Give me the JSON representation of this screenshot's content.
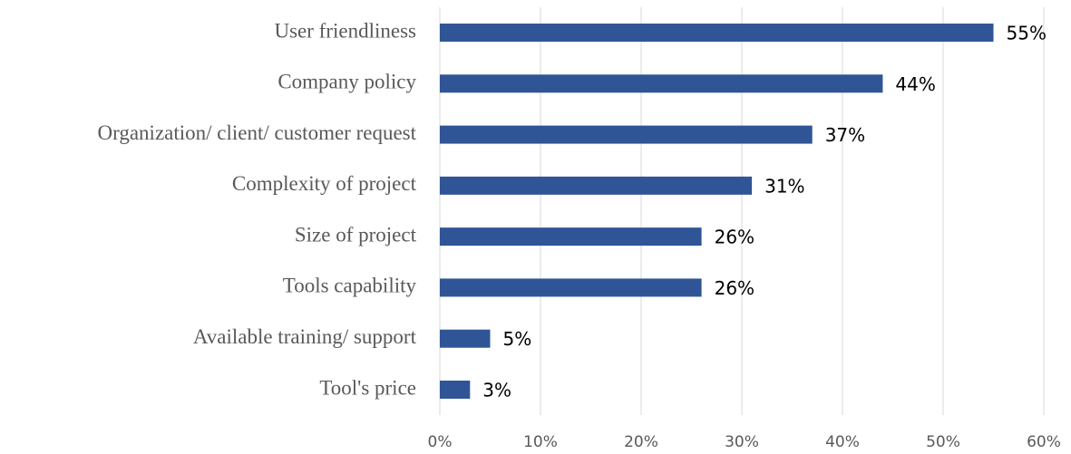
{
  "chart_data": {
    "type": "bar",
    "orientation": "horizontal",
    "categories": [
      "User friendliness",
      "Company policy",
      "Organization/ client/ customer request",
      "Complexity of project",
      "Size of project",
      "Tools capability",
      "Available training/ support",
      "Tool's price"
    ],
    "values": [
      55,
      44,
      37,
      31,
      26,
      26,
      5,
      3
    ],
    "value_labels": [
      "55%",
      "44%",
      "37%",
      "31%",
      "26%",
      "26%",
      "5%",
      "3%"
    ],
    "color": "#2f5597",
    "xlim": [
      0,
      60
    ],
    "xticks": [
      {
        "value": 0,
        "label": "0%"
      },
      {
        "value": 10,
        "label": "10%"
      },
      {
        "value": 20,
        "label": "20%"
      },
      {
        "value": 30,
        "label": "30%"
      },
      {
        "value": 40,
        "label": "40%"
      },
      {
        "value": 50,
        "label": "50%"
      },
      {
        "value": 60,
        "label": "60%"
      }
    ],
    "grid": true
  }
}
